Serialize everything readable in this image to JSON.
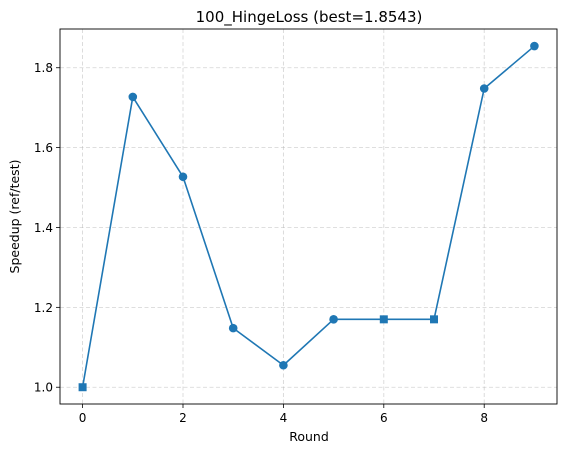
{
  "chart_data": {
    "type": "line",
    "title": "100_HingeLoss (best=1.8543)",
    "xlabel": "Round",
    "ylabel": "Speedup (ref/test)",
    "xlim": [
      -0.45,
      9.45
    ],
    "ylim": [
      0.958,
      1.897
    ],
    "xticks": [
      0,
      2,
      4,
      6,
      8
    ],
    "yticks": [
      1.0,
      1.2,
      1.4,
      1.6,
      1.8
    ],
    "grid": true,
    "grid_style": "dashed",
    "color": "#1f77b4",
    "series": [
      {
        "x": [
          0,
          1,
          2,
          3,
          4,
          5,
          6,
          7,
          8,
          9
        ],
        "y": [
          1.0,
          1.727,
          1.527,
          1.148,
          1.055,
          1.17,
          1.17,
          1.17,
          1.748,
          1.8543
        ],
        "markers": [
          "square",
          "circle",
          "circle",
          "circle",
          "circle",
          "circle",
          "square",
          "square",
          "circle",
          "circle"
        ]
      }
    ]
  }
}
